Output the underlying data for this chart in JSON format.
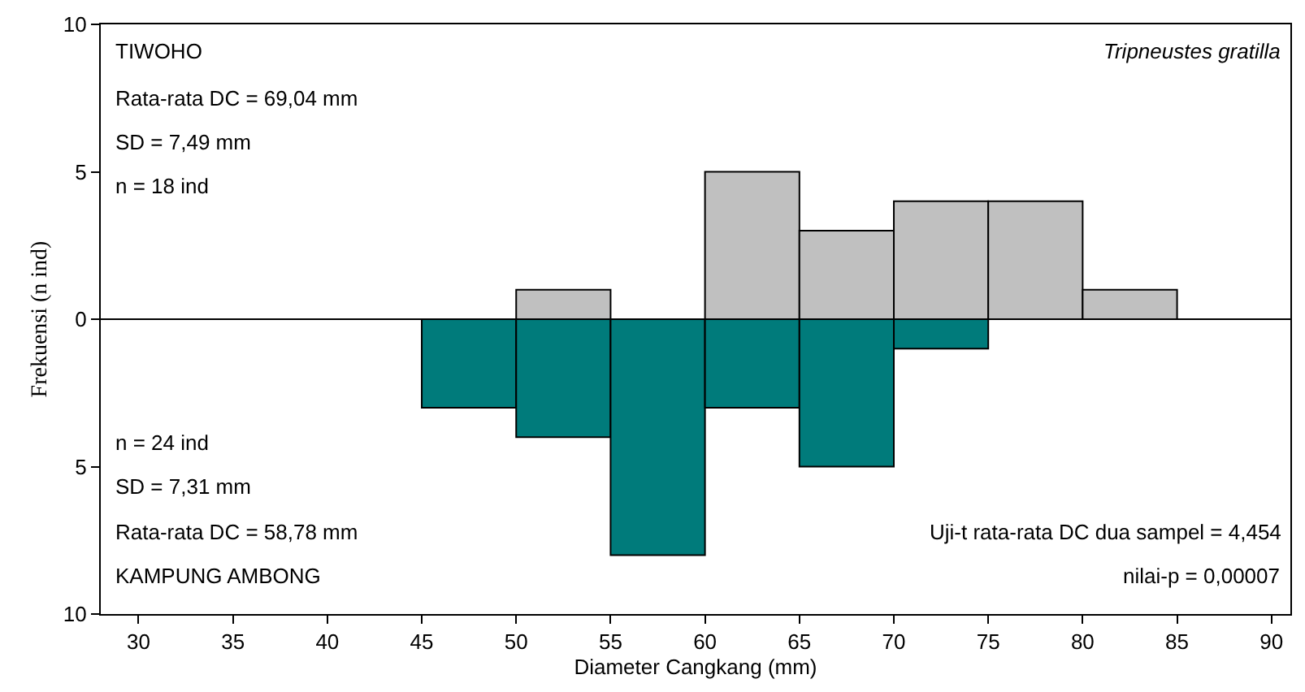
{
  "chart_data": {
    "type": "bar",
    "xlabel": "Diameter Cangkang (mm)",
    "ylabel": "Frekuensi (n ind)",
    "x": [
      47.5,
      52.5,
      57.5,
      62.5,
      67.5,
      72.5,
      77.5,
      82.5
    ],
    "stacked": true,
    "series": [
      {
        "color": "#c0c0c0",
        "values": [
          0,
          1,
          0,
          5,
          3,
          4,
          4,
          1
        ]
      },
      {
        "color": "#007b7b",
        "values": [
          -3,
          -4,
          -8,
          -3,
          -5,
          -1,
          0,
          0
        ]
      }
    ],
    "xlim": [
      28,
      91
    ],
    "xticks": [
      30,
      35,
      40,
      45,
      50,
      55,
      60,
      65,
      70,
      75,
      80,
      85,
      90
    ],
    "ylim": [
      -10,
      10
    ],
    "yticks": [
      {
        "value": -10,
        "label": "10"
      },
      {
        "value": -5,
        "label": "5"
      },
      0,
      5,
      10
    ],
    "ref_lines": [
      {
        "axis": "y",
        "value": 0,
        "color": "#000000"
      }
    ],
    "annotations": [
      "TIWOHO",
      "Rata-rata DC = 69,04 mm",
      "SD = 7,49 mm",
      "n = 18 ind",
      "Tripneustes gratilla",
      "n = 24 ind",
      "SD = 7,31 mm",
      "Rata-rata DC = 58,78 mm",
      "KAMPUNG AMBONG",
      "Uji-t rata-rata DC dua sampel = 4,454",
      "nilai-p = 0,00007"
    ]
  }
}
